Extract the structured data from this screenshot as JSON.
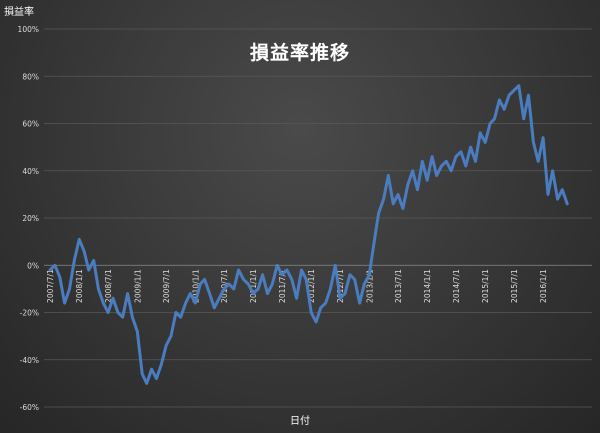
{
  "corner_label": "損益率",
  "chart_data": {
    "type": "line",
    "title": "損益率推移",
    "xlabel": "日付",
    "ylabel": "損益率",
    "ylim": [
      -60,
      100
    ],
    "yticks": [
      -60,
      -40,
      -20,
      0,
      20,
      40,
      60,
      80,
      100
    ],
    "ytick_labels": [
      "-60%",
      "-40%",
      "-20%",
      "0%",
      "20%",
      "40%",
      "60%",
      "80%",
      "100%"
    ],
    "xlim": [
      "2007/7/1",
      "2016/7/1"
    ],
    "xtick_labels": [
      "2007/7/1",
      "2008/1/1",
      "2008/7/1",
      "2009/1/1",
      "2009/7/1",
      "2010/1/1",
      "2010/7/1",
      "2011/1/1",
      "2011/7/1",
      "2012/1/1",
      "2012/7/1",
      "2013/1/1",
      "2013/7/1",
      "2014/1/1",
      "2014/7/1",
      "2015/1/1",
      "2015/7/1",
      "2016/1/1"
    ],
    "grid": true,
    "line_color": "#4a7cc0",
    "series": [
      {
        "x": [
          "2007/7/1",
          "2007/8/1",
          "2007/9/1",
          "2007/10/1",
          "2007/11/1",
          "2007/12/1",
          "2008/1/1",
          "2008/2/1",
          "2008/3/1",
          "2008/4/1",
          "2008/5/1",
          "2008/6/1",
          "2008/7/1",
          "2008/8/1",
          "2008/9/1",
          "2008/10/1",
          "2008/11/1",
          "2008/12/1",
          "2009/1/1",
          "2009/2/1",
          "2009/3/1",
          "2009/4/1",
          "2009/5/1",
          "2009/6/1",
          "2009/7/1",
          "2009/8/1",
          "2009/9/1",
          "2009/10/1",
          "2009/11/1",
          "2009/12/1",
          "2010/1/1",
          "2010/2/1",
          "2010/3/1",
          "2010/4/1",
          "2010/5/1",
          "2010/6/1",
          "2010/7/1",
          "2010/8/1",
          "2010/9/1",
          "2010/10/1",
          "2010/11/1",
          "2010/12/1",
          "2011/1/1",
          "2011/2/1",
          "2011/3/1",
          "2011/4/1",
          "2011/5/1",
          "2011/6/1",
          "2011/7/1",
          "2011/8/1",
          "2011/9/1",
          "2011/10/1",
          "2011/11/1",
          "2011/12/1",
          "2012/1/1",
          "2012/2/1",
          "2012/3/1",
          "2012/4/1",
          "2012/5/1",
          "2012/6/1",
          "2012/7/1",
          "2012/8/1",
          "2012/9/1",
          "2012/10/1",
          "2012/11/1",
          "2012/12/1",
          "2013/1/1",
          "2013/2/1",
          "2013/3/1",
          "2013/4/1",
          "2013/5/1",
          "2013/6/1",
          "2013/7/1",
          "2013/8/1",
          "2013/9/1",
          "2013/10/1",
          "2013/11/1",
          "2013/12/1",
          "2014/1/1",
          "2014/2/1",
          "2014/3/1",
          "2014/4/1",
          "2014/5/1",
          "2014/6/1",
          "2014/7/1",
          "2014/8/1",
          "2014/9/1",
          "2014/10/1",
          "2014/11/1",
          "2014/12/1",
          "2015/1/1",
          "2015/2/1",
          "2015/3/1",
          "2015/4/1",
          "2015/5/1",
          "2015/6/1",
          "2015/7/1",
          "2015/8/1",
          "2015/9/1",
          "2015/10/1",
          "2015/11/1",
          "2015/12/1",
          "2016/1/1",
          "2016/2/1",
          "2016/3/1",
          "2016/4/1",
          "2016/5/1",
          "2016/6/1"
        ],
        "values": [
          -2,
          0,
          -5,
          -16,
          -10,
          2,
          11,
          6,
          -2,
          2,
          -10,
          -16,
          -20,
          -14,
          -20,
          -22,
          -12,
          -22,
          -28,
          -46,
          -50,
          -44,
          -48,
          -42,
          -34,
          -30,
          -20,
          -22,
          -16,
          -12,
          -16,
          -8,
          -6,
          -12,
          -18,
          -14,
          -10,
          -8,
          -10,
          -2,
          -6,
          -8,
          -12,
          -10,
          -4,
          -12,
          -8,
          0,
          -4,
          -2,
          -6,
          -14,
          -2,
          -6,
          -20,
          -24,
          -18,
          -16,
          -10,
          0,
          -14,
          -12,
          -4,
          -6,
          -16,
          -8,
          -4,
          10,
          22,
          28,
          38,
          26,
          30,
          24,
          34,
          40,
          32,
          44,
          36,
          46,
          38,
          42,
          44,
          40,
          46,
          48,
          42,
          50,
          44,
          56,
          52,
          60,
          62,
          70,
          66,
          72,
          74,
          76,
          62,
          72,
          52,
          44,
          54,
          30,
          40,
          28,
          32,
          26
        ]
      }
    ]
  }
}
